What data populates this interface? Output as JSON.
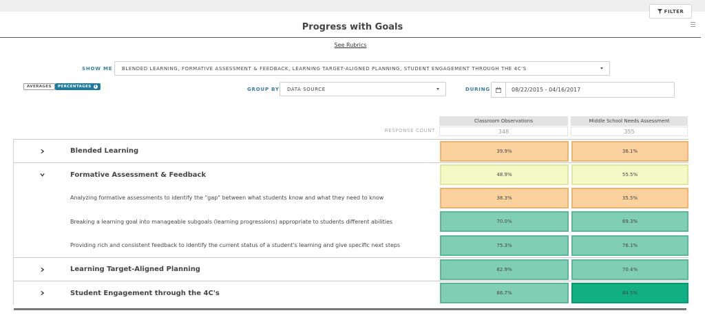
{
  "toolbar": {
    "filter_label": "FILTER",
    "filter_icon": "funnel-icon",
    "menu_icon": "hamburger-icon"
  },
  "page": {
    "title": "Progress with Goals",
    "see_rubrics": "See Rubrics"
  },
  "controls": {
    "show_me_label": "SHOW ME",
    "show_me_value": "BLENDED LEARNING, FORMATIVE ASSESSMENT & FEEDBACK, LEARNING TARGET-ALIGNED PLANNING, STUDENT ENGAGEMENT THROUGH THE 4C'S",
    "averages_label": "AVERAGES",
    "percentages_label": "PERCENTAGES",
    "group_by_label": "GROUP BY",
    "group_by_value": "DATA SOURCE",
    "during_label": "DURING",
    "date_range": "08/22/2015 - 04/16/2017"
  },
  "table": {
    "columns": [
      "Classroom Observations",
      "Middle School Needs Assessment"
    ],
    "response_count_label": "RESPONSE COUNT",
    "response_counts": [
      "348",
      "355"
    ],
    "rows": [
      {
        "type": "group",
        "expanded": false,
        "label": "Blended Learning",
        "values": [
          "39.9%",
          "36.1%"
        ]
      },
      {
        "type": "group",
        "expanded": true,
        "label": "Formative Assessment & Feedback",
        "values": [
          "48.9%",
          "55.5%"
        ]
      },
      {
        "type": "sub",
        "label": "Analyzing formative assessments to identify the \"gap\" between what students know and what they need to know",
        "values": [
          "38.3%",
          "35.5%"
        ]
      },
      {
        "type": "sub",
        "label": "Breaking a learning goal into manageable subgoals (learning progressions) appropriate to students different abilities",
        "values": [
          "70.0%",
          "69.3%"
        ]
      },
      {
        "type": "sub",
        "label": "Providing rich and consistent feedback to identify the current status of a student's learning and give specific next steps",
        "values": [
          "75.3%",
          "76.1%"
        ]
      },
      {
        "type": "group",
        "expanded": false,
        "label": "Learning Target-Aligned Planning",
        "values": [
          "62.9%",
          "70.4%"
        ]
      },
      {
        "type": "group",
        "expanded": false,
        "label": "Student Engagement through the 4C's",
        "values": [
          "66.7%",
          "84.5%"
        ]
      }
    ]
  },
  "colors": {
    "orange": {
      "fill": "#fbd19e",
      "border": "#efb36e"
    },
    "yellow": {
      "fill": "#f4f9c5",
      "border": "#dde8a0"
    },
    "teal": {
      "fill": "#80ceb4",
      "border": "#5cb596"
    },
    "green": {
      "fill": "#11af82",
      "border": "#0a9a70"
    },
    "accent": "#1d7b9e"
  }
}
